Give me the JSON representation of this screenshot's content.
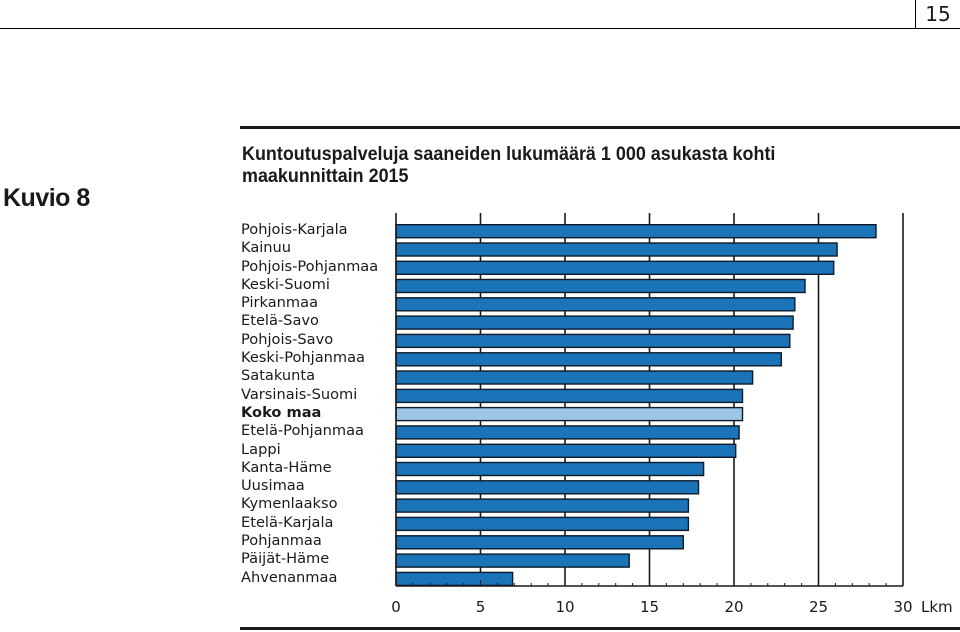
{
  "page_number": "15",
  "figure_label": "Kuvio 8",
  "chart_data": {
    "type": "bar",
    "orientation": "horizontal",
    "title": "Kuntoutuspalveluja saaneiden lukumäärä 1 000 asukasta kohti maakunnittain 2015",
    "xlabel": "Lkm",
    "ylabel": "",
    "xlim": [
      0,
      30
    ],
    "xticks": [
      "0",
      "5",
      "10",
      "15",
      "20",
      "25",
      "30"
    ],
    "grid": true,
    "bar_color": "#1b74b8",
    "highlight_color": "#9dc6e4",
    "categories": [
      "Pohjois-Karjala",
      "Kainuu",
      "Pohjois-Pohjanmaa",
      "Keski-Suomi",
      "Pirkanmaa",
      "Etelä-Savo",
      "Pohjois-Savo",
      "Keski-Pohjanmaa",
      "Satakunta",
      "Varsinais-Suomi",
      "Koko maa",
      "Etelä-Pohjanmaa",
      "Lappi",
      "Kanta-Häme",
      "Uusimaa",
      "Kymenlaakso",
      "Etelä-Karjala",
      "Pohjanmaa",
      "Päijät-Häme",
      "Ahvenanmaa"
    ],
    "values": [
      28.4,
      26.1,
      25.9,
      24.2,
      23.6,
      23.5,
      23.3,
      22.8,
      21.1,
      20.5,
      20.5,
      20.3,
      20.1,
      18.2,
      17.9,
      17.3,
      17.3,
      17.0,
      13.8,
      6.9
    ],
    "highlight": "Koko maa"
  }
}
